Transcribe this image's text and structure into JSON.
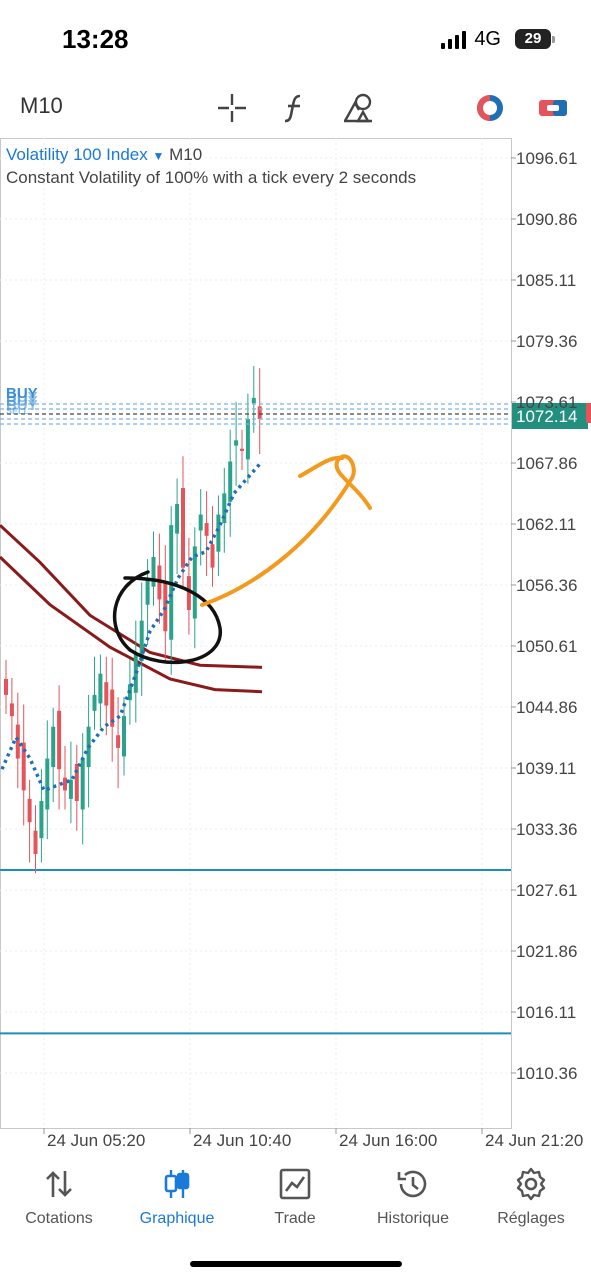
{
  "status_bar": {
    "time": "13:28",
    "network": "4G",
    "battery": "29"
  },
  "toolbar": {
    "timeframe": "M10"
  },
  "symbol": {
    "name": "Volatility 100 Index",
    "timeframe": "M10",
    "description": "Constant Volatility of 100% with a tick every 2 seconds"
  },
  "current_price": "1072.14",
  "trade_markers": [
    "BUY",
    "BUY",
    "BUY",
    "BUY",
    "SELL"
  ],
  "chart_data": {
    "type": "candlestick",
    "ylim": [
      1006,
      1099
    ],
    "y_ticks": [
      "1096.61",
      "1090.86",
      "1085.11",
      "1079.36",
      "1073.61",
      "1067.86",
      "1062.11",
      "1056.36",
      "1050.61",
      "1044.86",
      "1039.11",
      "1033.36",
      "1027.61",
      "1021.86",
      "1016.11",
      "1010.36"
    ],
    "x_ticks": [
      "24 Jun 05:20",
      "24 Jun 10:40",
      "24 Jun 16:00",
      "24 Jun 21:20"
    ],
    "horizontal_lines": [
      1029.5,
      1014.1
    ],
    "colors": {
      "bull": "#2aa38a",
      "bear": "#e5545b",
      "ma": "#8b1a1a",
      "psar": "#1f6fb5",
      "hline": "#1a8fbf",
      "drawing_orange": "#f39a1e",
      "drawing_black": "#111111"
    }
  },
  "tabs": [
    {
      "label": "Cotations",
      "icon": "arrows-updown-icon"
    },
    {
      "label": "Graphique",
      "icon": "candles-icon"
    },
    {
      "label": "Trade",
      "icon": "trade-chart-icon"
    },
    {
      "label": "Historique",
      "icon": "history-icon"
    },
    {
      "label": "Réglages",
      "icon": "gear-icon"
    }
  ]
}
